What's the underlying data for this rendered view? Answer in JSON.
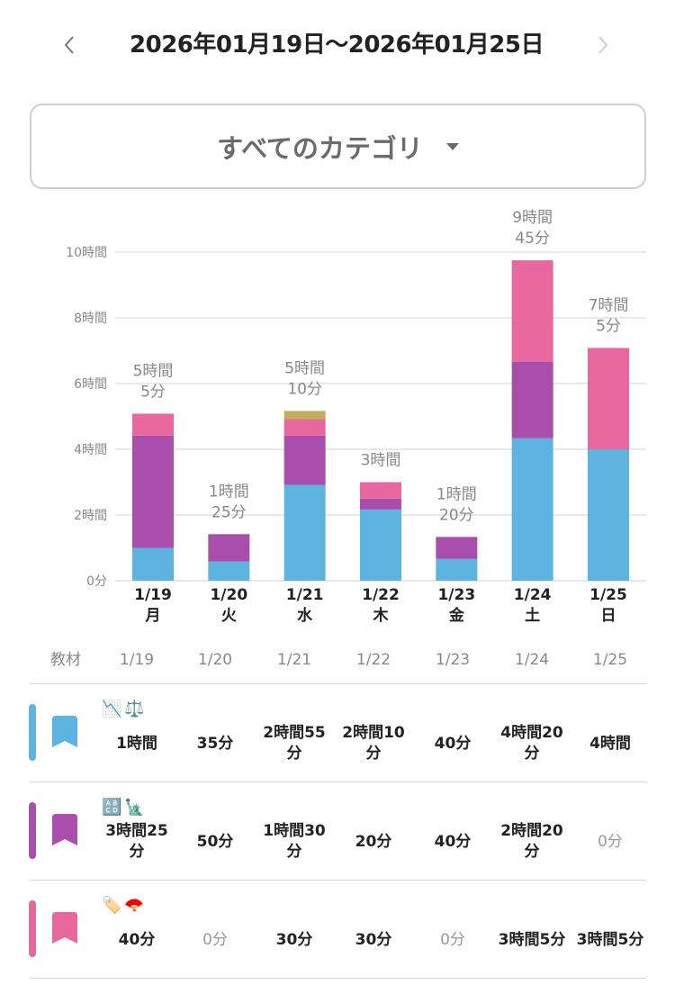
{
  "header": {
    "prev_icon": "chevron-left",
    "title": "2026年01月19日〜2026年01月25日",
    "next_icon": "chevron-right"
  },
  "filter": {
    "selected": "すべてのカテゴリ",
    "icon": "caret-down"
  },
  "colors": {
    "blue": "#5db4e0",
    "purple": "#a94fab",
    "pink": "#e8679e",
    "olive": "#c2ad5d",
    "grid": "#dcdcdc"
  },
  "chart_data": {
    "type": "bar",
    "stacked": true,
    "title": "",
    "xlabel": "",
    "ylabel": "",
    "unit": "minutes",
    "categories": [
      "1/19",
      "1/20",
      "1/21",
      "1/22",
      "1/23",
      "1/24",
      "1/25"
    ],
    "weekdays": [
      "月",
      "火",
      "水",
      "木",
      "金",
      "土",
      "日"
    ],
    "ylim_hours": [
      0,
      10
    ],
    "y_ticks_hours": [
      0,
      2,
      4,
      6,
      8,
      10
    ],
    "y_tick_labels": [
      "0分",
      "2時間",
      "4時間",
      "6時間",
      "8時間",
      "10時間"
    ],
    "grid": true,
    "series": [
      {
        "name": "📉⚖️",
        "color": "#5db4e0",
        "values": [
          60,
          35,
          175,
          130,
          40,
          260,
          240
        ]
      },
      {
        "name": "🔠🗽",
        "color": "#a94fab",
        "values": [
          205,
          50,
          90,
          20,
          40,
          140,
          0
        ]
      },
      {
        "name": "🏷️🪭",
        "color": "#e8679e",
        "values": [
          40,
          0,
          30,
          30,
          0,
          185,
          185
        ]
      },
      {
        "name": "other",
        "color": "#c2ad5d",
        "values": [
          0,
          0,
          15,
          0,
          0,
          0,
          0
        ]
      }
    ],
    "totals_minutes": [
      305,
      85,
      310,
      180,
      80,
      585,
      425
    ],
    "total_labels": [
      [
        "5時間",
        "5分"
      ],
      [
        "1時間",
        "25分"
      ],
      [
        "5時間",
        "10分"
      ],
      [
        "3時間"
      ],
      [
        "1時間",
        "20分"
      ],
      [
        "9時間",
        "45分"
      ],
      [
        "7時間",
        "5分"
      ]
    ]
  },
  "table": {
    "header_label": "教材",
    "dates": [
      "1/19",
      "1/20",
      "1/21",
      "1/22",
      "1/23",
      "1/24",
      "1/25"
    ],
    "rows": [
      {
        "color": "#5db4e0",
        "icon": "bookmark",
        "emojis": "📉⚖️",
        "cells": [
          "1時間",
          "35分",
          "2時間55分",
          "2時間10分",
          "40分",
          "4時間20分",
          "4時間"
        ]
      },
      {
        "color": "#a94fab",
        "icon": "bookmark",
        "emojis": "🔠🗽",
        "cells": [
          "3時間25分",
          "50分",
          "1時間30分",
          "20分",
          "40分",
          "2時間20分",
          "0分"
        ]
      },
      {
        "color": "#e8679e",
        "icon": "bookmark",
        "emojis": "🏷️🪭",
        "cells": [
          "40分",
          "0分",
          "30分",
          "30分",
          "0分",
          "3時間5分",
          "3時間5分"
        ]
      }
    ]
  }
}
